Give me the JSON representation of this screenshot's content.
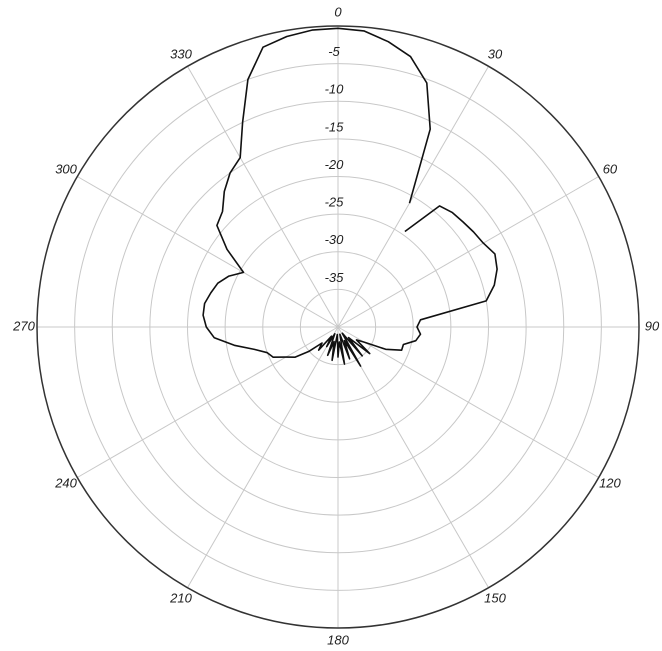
{
  "chart_data": {
    "type": "polar",
    "rlim": [
      -40,
      0
    ],
    "rticks": [
      -5,
      -10,
      -15,
      -20,
      -25,
      -30,
      -35
    ],
    "thetaticks": [
      0,
      30,
      60,
      90,
      120,
      150,
      180,
      210,
      240,
      270,
      300,
      330
    ],
    "direction": "clockwise",
    "zero_location": "top",
    "grid": true,
    "series": [
      {
        "color": "#111111",
        "x": [
          35,
          40,
          45,
          50,
          55,
          60,
          65,
          70,
          75,
          80,
          85,
          90,
          95,
          100,
          105,
          110,
          115,
          120,
          125,
          130,
          135,
          140,
          145,
          150,
          155,
          160,
          165,
          170,
          175,
          180,
          185,
          190,
          195,
          200,
          205,
          210,
          215,
          220,
          225,
          230,
          235,
          240,
          245,
          250,
          255,
          260,
          265,
          270,
          275,
          280,
          285,
          290,
          295,
          300,
          305,
          310,
          315,
          320,
          325,
          330,
          335,
          340,
          345,
          350,
          355,
          0,
          5,
          10,
          15,
          20,
          25,
          30
        ],
        "values": [
          -24.5,
          -19,
          -18.5,
          -18.3,
          -18,
          -17.7,
          -17,
          -17.5,
          -18.5,
          -20,
          -29,
          -29.5,
          -29,
          -29.5,
          -31,
          -31,
          -33,
          -36,
          -37,
          -34.5,
          -38,
          -35,
          -39,
          -34,
          -38,
          -35.5,
          -39,
          -35,
          -38,
          -36,
          -39,
          -35.5,
          -38,
          -36,
          -39,
          -37,
          -38.5,
          -36,
          -37,
          -35,
          -33,
          -32,
          -30.5,
          -30,
          -28.5,
          -26,
          -23.5,
          -22.5,
          -22,
          -22,
          -22.5,
          -23,
          -24,
          -25.5,
          -22,
          -19,
          -18.3,
          -16.5,
          -15,
          -14,
          -10,
          -5,
          -1.5,
          -0.8,
          -0.4,
          -0.3,
          -0.5,
          -1.5,
          -2.8,
          -5.5,
          -11,
          -21
        ]
      }
    ]
  }
}
